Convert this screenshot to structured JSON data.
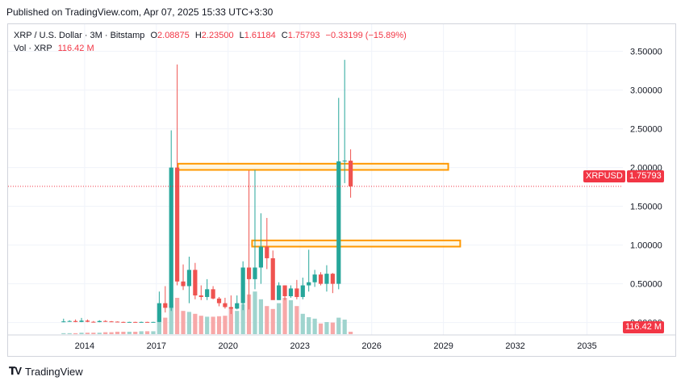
{
  "header": {
    "published": "Published on TradingView.com, Apr 07, 2025 15:33 UTC+3:30"
  },
  "legend": {
    "symbol": "XRP / U.S. Dollar · 3M · Bitstamp",
    "o_label": "O",
    "o": "2.08875",
    "h_label": "H",
    "h": "2.23500",
    "l_label": "L",
    "l": "1.61184",
    "c_label": "C",
    "c": "1.75793",
    "change": "−0.33199 (−15.89%)",
    "vol_label": "Vol · XRP",
    "vol": "116.42 M"
  },
  "price_tag": {
    "symbol": "XRPUSD",
    "value": "1.75793"
  },
  "volume_tag": "116.42 M",
  "footer": {
    "brand": "TradingView"
  },
  "colors": {
    "up": "#26a69a",
    "down": "#ef5350",
    "box": "#ff9800",
    "box_fill": "#fff3d6",
    "last_line": "#f23645"
  },
  "chart_data": {
    "type": "candlestick",
    "series_name": "XRP / U.S. Dollar",
    "interval": "3M",
    "x_tick_labels": [
      "2014",
      "2017",
      "2020",
      "2023",
      "2026",
      "2029",
      "2032",
      "2035"
    ],
    "x_ticks": [
      2014,
      2017,
      2020,
      2023,
      2026,
      2029,
      2032,
      2035
    ],
    "xlim": [
      2010.8,
      2036.5
    ],
    "y_tick_labels": [
      "0.00000",
      "0.50000",
      "1.00000",
      "1.50000",
      "2.00000",
      "2.50000",
      "3.00000",
      "3.50000"
    ],
    "y_ticks": [
      0,
      0.5,
      1,
      1.5,
      2,
      2.5,
      3,
      3.5
    ],
    "ylim": [
      -0.16,
      3.85
    ],
    "last_price": 1.75793,
    "zones": [
      {
        "x0": 2017.9,
        "x1": 2029.2,
        "y0": 1.97,
        "y1": 2.05
      },
      {
        "x0": 2021.0,
        "x1": 2029.7,
        "y0": 0.98,
        "y1": 1.06
      }
    ],
    "candles": [
      {
        "t": 2013.12,
        "o": 0.006,
        "h": 0.05,
        "l": 0.004,
        "c": 0.015,
        "v": 0.02
      },
      {
        "t": 2013.37,
        "o": 0.015,
        "h": 0.03,
        "l": 0.01,
        "c": 0.02,
        "v": 0.02
      },
      {
        "t": 2013.62,
        "o": 0.02,
        "h": 0.04,
        "l": 0.005,
        "c": 0.008,
        "v": 0.02
      },
      {
        "t": 2013.87,
        "o": 0.008,
        "h": 0.06,
        "l": 0.005,
        "c": 0.025,
        "v": 0.03
      },
      {
        "t": 2014.12,
        "o": 0.025,
        "h": 0.04,
        "l": 0.005,
        "c": 0.01,
        "v": 0.03
      },
      {
        "t": 2014.37,
        "o": 0.01,
        "h": 0.02,
        "l": 0.004,
        "c": 0.006,
        "v": 0.03
      },
      {
        "t": 2014.62,
        "o": 0.006,
        "h": 0.03,
        "l": 0.004,
        "c": 0.02,
        "v": 0.03
      },
      {
        "t": 2014.87,
        "o": 0.02,
        "h": 0.03,
        "l": 0.01,
        "c": 0.015,
        "v": 0.04
      },
      {
        "t": 2015.12,
        "o": 0.015,
        "h": 0.02,
        "l": 0.008,
        "c": 0.012,
        "v": 0.04
      },
      {
        "t": 2015.37,
        "o": 0.012,
        "h": 0.015,
        "l": 0.006,
        "c": 0.008,
        "v": 0.05
      },
      {
        "t": 2015.62,
        "o": 0.008,
        "h": 0.012,
        "l": 0.005,
        "c": 0.006,
        "v": 0.05
      },
      {
        "t": 2015.87,
        "o": 0.006,
        "h": 0.01,
        "l": 0.005,
        "c": 0.008,
        "v": 0.05
      },
      {
        "t": 2016.12,
        "o": 0.008,
        "h": 0.01,
        "l": 0.005,
        "c": 0.006,
        "v": 0.05
      },
      {
        "t": 2016.37,
        "o": 0.006,
        "h": 0.012,
        "l": 0.005,
        "c": 0.008,
        "v": 0.06
      },
      {
        "t": 2016.62,
        "o": 0.008,
        "h": 0.01,
        "l": 0.006,
        "c": 0.007,
        "v": 0.06
      },
      {
        "t": 2016.87,
        "o": 0.007,
        "h": 0.01,
        "l": 0.006,
        "c": 0.008,
        "v": 0.06
      },
      {
        "t": 2017.12,
        "o": 0.008,
        "h": 0.4,
        "l": 0.005,
        "c": 0.25,
        "v": 0.28
      },
      {
        "t": 2017.37,
        "o": 0.25,
        "h": 0.47,
        "l": 0.13,
        "c": 0.19,
        "v": 0.34
      },
      {
        "t": 2017.62,
        "o": 0.19,
        "h": 2.48,
        "l": 0.15,
        "c": 2.0,
        "v": 0.62
      },
      {
        "t": 2017.87,
        "o": 2.0,
        "h": 3.33,
        "l": 0.48,
        "c": 0.53,
        "v": 0.75
      },
      {
        "t": 2018.12,
        "o": 0.53,
        "h": 0.75,
        "l": 0.42,
        "c": 0.47,
        "v": 0.48
      },
      {
        "t": 2018.37,
        "o": 0.47,
        "h": 0.85,
        "l": 0.25,
        "c": 0.68,
        "v": 0.46
      },
      {
        "t": 2018.62,
        "o": 0.68,
        "h": 0.77,
        "l": 0.3,
        "c": 0.35,
        "v": 0.42
      },
      {
        "t": 2018.87,
        "o": 0.35,
        "h": 0.48,
        "l": 0.29,
        "c": 0.33,
        "v": 0.38
      },
      {
        "t": 2019.12,
        "o": 0.33,
        "h": 0.56,
        "l": 0.29,
        "c": 0.43,
        "v": 0.36
      },
      {
        "t": 2019.37,
        "o": 0.43,
        "h": 0.47,
        "l": 0.3,
        "c": 0.31,
        "v": 0.36
      },
      {
        "t": 2019.62,
        "o": 0.31,
        "h": 0.33,
        "l": 0.21,
        "c": 0.25,
        "v": 0.37
      },
      {
        "t": 2019.87,
        "o": 0.25,
        "h": 0.32,
        "l": 0.18,
        "c": 0.2,
        "v": 0.38
      },
      {
        "t": 2020.12,
        "o": 0.2,
        "h": 0.35,
        "l": 0.11,
        "c": 0.18,
        "v": 0.55
      },
      {
        "t": 2020.37,
        "o": 0.18,
        "h": 0.35,
        "l": 0.17,
        "c": 0.25,
        "v": 0.48
      },
      {
        "t": 2020.62,
        "o": 0.25,
        "h": 0.79,
        "l": 0.16,
        "c": 0.71,
        "v": 0.62
      },
      {
        "t": 2020.87,
        "o": 0.71,
        "h": 1.96,
        "l": 0.17,
        "c": 0.56,
        "v": 0.82
      },
      {
        "t": 2021.12,
        "o": 0.56,
        "h": 1.97,
        "l": 0.43,
        "c": 0.71,
        "v": 0.88
      },
      {
        "t": 2021.37,
        "o": 0.71,
        "h": 1.41,
        "l": 0.5,
        "c": 0.98,
        "v": 0.72
      },
      {
        "t": 2021.62,
        "o": 0.98,
        "h": 1.35,
        "l": 0.69,
        "c": 0.83,
        "v": 0.58
      },
      {
        "t": 2021.87,
        "o": 0.83,
        "h": 0.93,
        "l": 0.3,
        "c": 0.29,
        "v": 0.52
      },
      {
        "t": 2022.12,
        "o": 0.29,
        "h": 0.52,
        "l": 0.29,
        "c": 0.48,
        "v": 0.64
      },
      {
        "t": 2022.37,
        "o": 0.48,
        "h": 0.48,
        "l": 0.29,
        "c": 0.34,
        "v": 0.75
      },
      {
        "t": 2022.62,
        "o": 0.34,
        "h": 0.48,
        "l": 0.32,
        "c": 0.44,
        "v": 0.7
      },
      {
        "t": 2022.87,
        "o": 0.44,
        "h": 0.55,
        "l": 0.3,
        "c": 0.33,
        "v": 0.58
      },
      {
        "t": 2023.12,
        "o": 0.33,
        "h": 0.58,
        "l": 0.3,
        "c": 0.48,
        "v": 0.42
      },
      {
        "t": 2023.37,
        "o": 0.48,
        "h": 0.94,
        "l": 0.4,
        "c": 0.52,
        "v": 0.35
      },
      {
        "t": 2023.62,
        "o": 0.52,
        "h": 0.68,
        "l": 0.46,
        "c": 0.62,
        "v": 0.32
      },
      {
        "t": 2023.87,
        "o": 0.62,
        "h": 0.65,
        "l": 0.48,
        "c": 0.5,
        "v": 0.22
      },
      {
        "t": 2024.12,
        "o": 0.5,
        "h": 0.74,
        "l": 0.4,
        "c": 0.63,
        "v": 0.25
      },
      {
        "t": 2024.37,
        "o": 0.63,
        "h": 0.64,
        "l": 0.38,
        "c": 0.5,
        "v": 0.24
      },
      {
        "t": 2024.62,
        "o": 0.5,
        "h": 2.9,
        "l": 0.43,
        "c": 2.08,
        "v": 0.34
      },
      {
        "t": 2024.87,
        "o": 2.08,
        "h": 3.39,
        "l": 1.8,
        "c": 2.09,
        "v": 0.3
      },
      {
        "t": 2025.12,
        "o": 2.08875,
        "h": 2.235,
        "l": 1.61184,
        "c": 1.75793,
        "v": 0.05
      }
    ]
  }
}
